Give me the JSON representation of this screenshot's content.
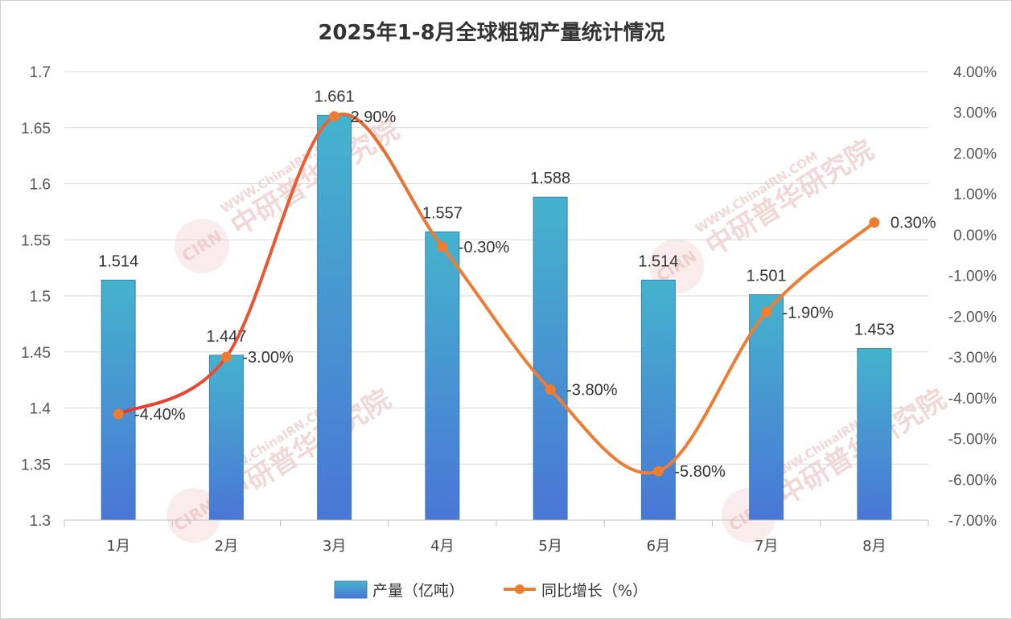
{
  "chart_data": {
    "type": "bar+line",
    "title": "2025年1-8月全球粗钢产量统计情况",
    "categories": [
      "1月",
      "2月",
      "3月",
      "4月",
      "5月",
      "6月",
      "7月",
      "8月"
    ],
    "series": [
      {
        "name": "产量（亿吨）",
        "type": "bar",
        "axis": "left",
        "values": [
          1.514,
          1.447,
          1.661,
          1.557,
          1.588,
          1.514,
          1.501,
          1.453
        ],
        "labels": [
          "1.514",
          "1.447",
          "1.661",
          "1.557",
          "1.588",
          "1.514",
          "1.501",
          "1.453"
        ]
      },
      {
        "name": "同比增长（%）",
        "type": "line",
        "axis": "right",
        "values": [
          -4.4,
          -3.0,
          2.9,
          -0.3,
          -3.8,
          -5.8,
          -1.9,
          0.3
        ],
        "labels": [
          "-4.40%",
          "-3.00%",
          "2.90%",
          "-0.30%",
          "-3.80%",
          "-5.80%",
          "-1.90%",
          "0.30%"
        ]
      }
    ],
    "left_axis": {
      "ylim": [
        1.3,
        1.7
      ],
      "ticks": [
        1.3,
        1.35,
        1.4,
        1.45,
        1.5,
        1.55,
        1.6,
        1.65,
        1.7
      ],
      "tick_labels": [
        "1.3",
        "1.35",
        "1.4",
        "1.45",
        "1.5",
        "1.55",
        "1.6",
        "1.65",
        "1.7"
      ]
    },
    "right_axis": {
      "ylim": [
        -7,
        4
      ],
      "ticks": [
        -7,
        -6,
        -5,
        -4,
        -3,
        -2,
        -1,
        0,
        1,
        2,
        3,
        4
      ],
      "tick_labels": [
        "-7.00%",
        "-6.00%",
        "-5.00%",
        "-4.00%",
        "-3.00%",
        "-2.00%",
        "-1.00%",
        "0.00%",
        "1.00%",
        "2.00%",
        "3.00%",
        "4.00%"
      ]
    },
    "grid": true,
    "legend_position": "bottom",
    "colors": {
      "bar_top": "#45b3cd",
      "bar_bottom": "#4a76d6",
      "bar_edge": "#3a7fae",
      "line_start": "#e8372e",
      "line_end": "#ee7d33",
      "marker": "#ed7d31",
      "grid": "#d9d9d9"
    }
  },
  "watermark": {
    "url": "WWW.ChinaIRN.COM",
    "brand": "中研普华研究院",
    "logo": "CIRN"
  }
}
